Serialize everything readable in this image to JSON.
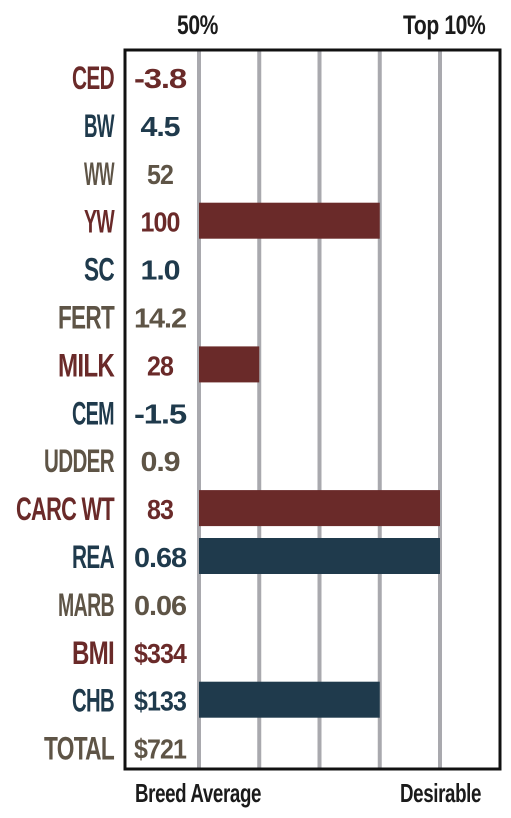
{
  "colors": {
    "maroon": "#6a2a29",
    "navy": "#1f3a4c",
    "olive": "#5e5446",
    "grid": "#a9a9ae",
    "frame": "#111111"
  },
  "header": {
    "left_label": "50%",
    "right_label": "Top 10%"
  },
  "footer": {
    "left_label": "Breed Average",
    "right_label": "Desirable"
  },
  "chart_data": {
    "type": "bar",
    "orientation": "horizontal",
    "scale_units": "gridline steps from breed average (50%) toward top 10%",
    "scale_range": [
      0,
      4
    ],
    "gridlines": 5,
    "grid": true,
    "rows": [
      {
        "trait": "CED",
        "value": "-3.8",
        "bar": 0,
        "color": "maroon"
      },
      {
        "trait": "BW",
        "value": "4.5",
        "bar": 0,
        "color": "navy"
      },
      {
        "trait": "WW",
        "value": "52",
        "bar": 0,
        "color": "olive"
      },
      {
        "trait": "YW",
        "value": "100",
        "bar": 3,
        "color": "maroon"
      },
      {
        "trait": "SC",
        "value": "1.0",
        "bar": 0,
        "color": "navy"
      },
      {
        "trait": "FERT",
        "value": "14.2",
        "bar": 0,
        "color": "olive"
      },
      {
        "trait": "MILK",
        "value": "28",
        "bar": 1,
        "color": "maroon"
      },
      {
        "trait": "CEM",
        "value": "-1.5",
        "bar": 0,
        "color": "navy"
      },
      {
        "trait": "UDDER",
        "value": "0.9",
        "bar": 0,
        "color": "olive"
      },
      {
        "trait": "CARC WT",
        "value": "83",
        "bar": 4,
        "color": "maroon"
      },
      {
        "trait": "REA",
        "value": "0.68",
        "bar": 4,
        "color": "navy"
      },
      {
        "trait": "MARB",
        "value": "0.06",
        "bar": 0,
        "color": "olive"
      },
      {
        "trait": "BMI",
        "value": "$334",
        "bar": 0,
        "color": "maroon"
      },
      {
        "trait": "CHB",
        "value": "$133",
        "bar": 3,
        "color": "navy"
      },
      {
        "trait": "TOTAL",
        "value": "$721",
        "bar": 0,
        "color": "olive"
      }
    ]
  }
}
